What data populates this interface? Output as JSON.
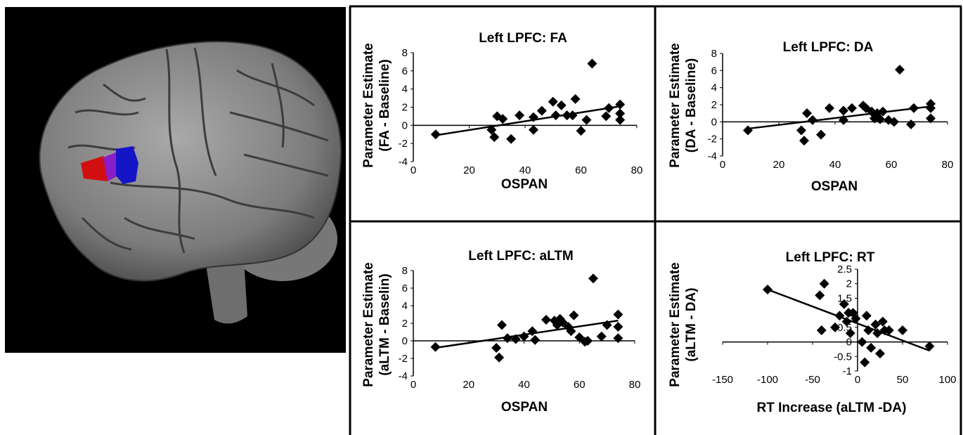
{
  "colors": {
    "brain_background": "#000000",
    "cortex": "#8a8a8a",
    "region_red": "#d01010",
    "region_blue": "#1515c8",
    "markers": "#000000"
  },
  "chart_data": [
    {
      "type": "scatter",
      "title": "Left  LPFC: FA",
      "xlabel": "OSPAN",
      "ylabel": [
        "Parameter  Estimate",
        "(FA - Baseline)"
      ],
      "xlim": [
        0,
        80
      ],
      "ylim": [
        -4,
        8
      ],
      "xticks": [
        "0",
        "20",
        "40",
        "60",
        "80"
      ],
      "yticks": [
        "8",
        "6",
        "4",
        "2",
        "0",
        "-2",
        "-4"
      ],
      "points": [
        [
          8,
          -1.0
        ],
        [
          28,
          -0.5
        ],
        [
          29,
          -1.3
        ],
        [
          30,
          1.0
        ],
        [
          32,
          0.7
        ],
        [
          35,
          -1.5
        ],
        [
          38,
          1.1
        ],
        [
          43,
          -0.5
        ],
        [
          43,
          0.9
        ],
        [
          46,
          1.6
        ],
        [
          50,
          2.6
        ],
        [
          51,
          1.1
        ],
        [
          53,
          2.2
        ],
        [
          55,
          1.1
        ],
        [
          57,
          1.1
        ],
        [
          58,
          2.9
        ],
        [
          60,
          -0.6
        ],
        [
          62,
          0.6
        ],
        [
          64,
          6.8
        ],
        [
          69,
          1.0
        ],
        [
          70,
          1.9
        ],
        [
          74,
          2.3
        ],
        [
          74,
          1.3
        ],
        [
          74,
          0.6
        ]
      ],
      "trendline": [
        [
          8,
          -1.1
        ],
        [
          74,
          2.1
        ]
      ]
    },
    {
      "type": "scatter",
      "title": "Left  LPFC: DA",
      "xlabel": "OSPAN",
      "ylabel": [
        "Parameter  Estimate",
        "(DA - Baseline)"
      ],
      "xlim": [
        0,
        80
      ],
      "ylim": [
        -4,
        8
      ],
      "xticks": [
        "0",
        "20",
        "40",
        "60",
        "80"
      ],
      "yticks": [
        "8",
        "6",
        "4",
        "2",
        "0",
        "-2",
        "-4"
      ],
      "points": [
        [
          9,
          -1.0
        ],
        [
          28,
          -1.0
        ],
        [
          29,
          -2.2
        ],
        [
          30,
          1.0
        ],
        [
          32,
          0.2
        ],
        [
          35,
          -1.5
        ],
        [
          38,
          1.6
        ],
        [
          43,
          1.3
        ],
        [
          43,
          0.2
        ],
        [
          46,
          1.6
        ],
        [
          50,
          1.9
        ],
        [
          51,
          1.6
        ],
        [
          53,
          1.2
        ],
        [
          54,
          0.4
        ],
        [
          55,
          1.0
        ],
        [
          56,
          0.3
        ],
        [
          57,
          1.2
        ],
        [
          59,
          0.2
        ],
        [
          61,
          0.0
        ],
        [
          63,
          6.1
        ],
        [
          67,
          -0.3
        ],
        [
          68,
          1.6
        ],
        [
          74,
          2.1
        ],
        [
          74,
          1.6
        ],
        [
          74,
          0.4
        ]
      ],
      "trendline": [
        [
          9,
          -0.8
        ],
        [
          74,
          1.8
        ]
      ]
    },
    {
      "type": "scatter",
      "title": "Left  LPFC: aLTM",
      "xlabel": "OSPAN",
      "ylabel": [
        "Parameter  Estimate",
        "(aLTM  - Baselin)"
      ],
      "xlim": [
        0,
        80
      ],
      "ylim": [
        -4,
        8
      ],
      "xticks": [
        "0",
        "20",
        "40",
        "60",
        "80"
      ],
      "yticks": [
        "8",
        "6",
        "4",
        "2",
        "0",
        "-2",
        "-4"
      ],
      "points": [
        [
          8,
          -0.7
        ],
        [
          30,
          -0.8
        ],
        [
          31,
          -1.9
        ],
        [
          32,
          1.8
        ],
        [
          34,
          0.3
        ],
        [
          37,
          0.2
        ],
        [
          40,
          0.5
        ],
        [
          43,
          1.1
        ],
        [
          44,
          0.1
        ],
        [
          48,
          2.4
        ],
        [
          51,
          2.3
        ],
        [
          52,
          1.8
        ],
        [
          53,
          2.5
        ],
        [
          54,
          2.1
        ],
        [
          56,
          1.6
        ],
        [
          57,
          1.1
        ],
        [
          58,
          2.9
        ],
        [
          60,
          0.4
        ],
        [
          62,
          -0.1
        ],
        [
          63,
          0.0
        ],
        [
          65,
          7.1
        ],
        [
          68,
          0.5
        ],
        [
          70,
          1.8
        ],
        [
          74,
          3.0
        ],
        [
          74,
          1.6
        ],
        [
          74,
          0.3
        ]
      ],
      "trendline": [
        [
          8,
          -0.8
        ],
        [
          74,
          2.3
        ]
      ]
    },
    {
      "type": "scatter",
      "title": "Left  LPFC: RT",
      "xlabel": "RT Increase (aLTM -DA)",
      "ylabel": [
        "Parameter  Estimate",
        "(aLTM  - DA)"
      ],
      "xlim": [
        -150,
        100
      ],
      "ylim": [
        -1,
        2.5
      ],
      "xticks": [
        "-150",
        "-100",
        "-50",
        "0",
        "50",
        "100"
      ],
      "yticks": [
        "2.5",
        "2",
        "1.5",
        "1",
        "0.5",
        "0",
        "-0.5",
        "-1"
      ],
      "points": [
        [
          -100,
          1.8
        ],
        [
          -42,
          1.6
        ],
        [
          -37,
          2.0
        ],
        [
          -40,
          0.4
        ],
        [
          -25,
          0.5
        ],
        [
          -20,
          0.9
        ],
        [
          -15,
          1.3
        ],
        [
          -12,
          0.7
        ],
        [
          -10,
          1.0
        ],
        [
          -8,
          0.3
        ],
        [
          -5,
          1.0
        ],
        [
          -2,
          0.8
        ],
        [
          5,
          0.0
        ],
        [
          8,
          -0.7
        ],
        [
          10,
          0.9
        ],
        [
          12,
          0.4
        ],
        [
          15,
          -0.2
        ],
        [
          20,
          0.6
        ],
        [
          22,
          0.3
        ],
        [
          25,
          -0.4
        ],
        [
          28,
          0.7
        ],
        [
          30,
          0.4
        ],
        [
          35,
          0.4
        ],
        [
          50,
          0.4
        ],
        [
          80,
          -0.15
        ]
      ],
      "trendline": [
        [
          -100,
          1.8
        ],
        [
          80,
          -0.3
        ]
      ]
    }
  ]
}
